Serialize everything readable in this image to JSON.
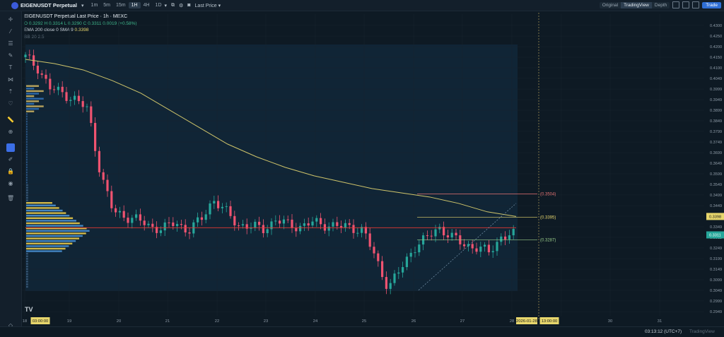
{
  "header": {
    "symbol": "EIGENUSDT Perpetual",
    "timeframes": [
      "1m",
      "5m",
      "15m",
      "1H",
      "4H",
      "1D"
    ],
    "active_timeframe": "1H",
    "price_type": "Last Price",
    "views": [
      "Original",
      "TradingView",
      "Depth"
    ],
    "active_view": "TradingView",
    "trade_label": "Trade"
  },
  "legend": {
    "title": "EIGENUSDT Perpetual Last Price · 1h · MEXC",
    "ohlc": "O 0.3292  H 0.3314  L 0.3290  C 0.3311  0.0019 (+0.58%)",
    "ema": "EMA 200 close 0 SMA 9",
    "ema_value": "0.3398",
    "bb": "BB 20 2.5"
  },
  "price_axis": [
    "0.4300",
    "0.4250",
    "0.4200",
    "0.4150",
    "0.4100",
    "0.4049",
    "0.3999",
    "0.3949",
    "0.3899",
    "0.3849",
    "0.3799",
    "0.3749",
    "0.3699",
    "0.3649",
    "0.3599",
    "0.3549",
    "0.3499",
    "0.3449",
    "0.3398",
    "0.3349",
    "0.3311",
    "0.3249",
    "0.3199",
    "0.3149",
    "0.3099",
    "0.3049",
    "0.2999",
    "0.2949"
  ],
  "price_badges": {
    "ema": "0.3398",
    "last": "0.3311"
  },
  "annotations": {
    "upper": "(0.3504)",
    "mid": "(0.3395)",
    "lower": "(0.3287)"
  },
  "time_axis": [
    "18",
    "03:00:00",
    "19",
    "20",
    "21",
    "22",
    "23",
    "24",
    "25",
    "26",
    "27",
    "28",
    "2026-01-28",
    "13:00:00",
    "30",
    "31"
  ],
  "status": {
    "clock": "03:13:12 (UTC+7)",
    "brand": "TradingView"
  },
  "chart_data": {
    "type": "candlestick",
    "ylim": [
      0.2949,
      0.43
    ],
    "x": [
      "18",
      "19",
      "20",
      "21",
      "22",
      "23",
      "24",
      "25",
      "26",
      "27",
      "28"
    ],
    "close_path": [
      0.415,
      0.41,
      0.4,
      0.398,
      0.395,
      0.39,
      0.36,
      0.342,
      0.34,
      0.338,
      0.335,
      0.334,
      0.337,
      0.333,
      0.338,
      0.348,
      0.342,
      0.336,
      0.335,
      0.334,
      0.338,
      0.336,
      0.335,
      0.337,
      0.336,
      0.335,
      0.335,
      0.333,
      0.32,
      0.306,
      0.315,
      0.325,
      0.329,
      0.335,
      0.33,
      0.327,
      0.325,
      0.323,
      0.33,
      0.3311
    ],
    "ema200": [
      0.414,
      0.412,
      0.409,
      0.404,
      0.398,
      0.39,
      0.382,
      0.374,
      0.368,
      0.363,
      0.359,
      0.356,
      0.353,
      0.351,
      0.349,
      0.346,
      0.342,
      0.3398
    ],
    "current_price": 0.3311,
    "ema_value": 0.3398
  }
}
